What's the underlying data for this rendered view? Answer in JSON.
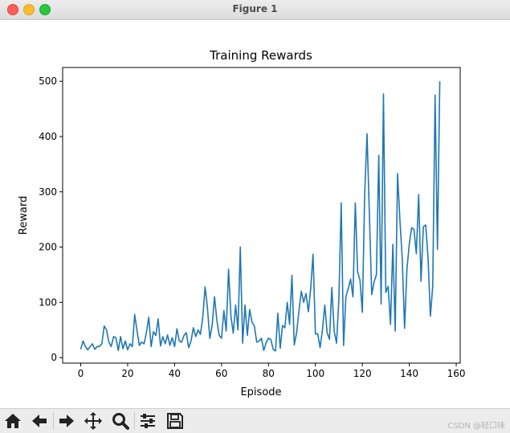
{
  "window": {
    "title": "Figure 1"
  },
  "toolbar": {
    "buttons": [
      "home-icon",
      "back-arrow-icon",
      "forward-arrow-icon",
      "pan-icon",
      "zoom-icon",
      "subplots-icon",
      "save-icon"
    ],
    "watermark": "CSDN @轻口味"
  },
  "colors": {
    "line": "#1f77b4",
    "axis": "#000000"
  },
  "chart_data": {
    "type": "line",
    "title": "Training Rewards",
    "xlabel": "Episode",
    "ylabel": "Reward",
    "xlim": [
      -7.7,
      161.7
    ],
    "ylim": [
      -10,
      525
    ],
    "xticks": [
      0,
      20,
      40,
      60,
      80,
      100,
      120,
      140,
      160
    ],
    "yticks": [
      0,
      100,
      200,
      300,
      400,
      500
    ],
    "grid": false,
    "series": [
      {
        "values": [
          15,
          30,
          20,
          14,
          20,
          25,
          15,
          20,
          20,
          25,
          57,
          50,
          28,
          20,
          38,
          36,
          13,
          38,
          16,
          30,
          14,
          25,
          20,
          78,
          48,
          22,
          28,
          25,
          46,
          73,
          20,
          47,
          40,
          70,
          21,
          38,
          25,
          41,
          22,
          36,
          20,
          52,
          30,
          28,
          40,
          45,
          18,
          30,
          54,
          38,
          50,
          42,
          72,
          128,
          90,
          35,
          58,
          110,
          68,
          40,
          35,
          85,
          48,
          160,
          75,
          44,
          95,
          50,
          200,
          26,
          95,
          40,
          87,
          64,
          57,
          28,
          30,
          35,
          13,
          27,
          35,
          33,
          15,
          12,
          80,
          17,
          58,
          54,
          100,
          60,
          149,
          23,
          45,
          85,
          120,
          100,
          116,
          83,
          125,
          187,
          43,
          43,
          18,
          50,
          95,
          45,
          33,
          127,
          48,
          26,
          105,
          280,
          22,
          110,
          125,
          142,
          110,
          280,
          155,
          140,
          82,
          296,
          405,
          260,
          114,
          137,
          150,
          366,
          97,
          477,
          118,
          129,
          60,
          205,
          48,
          333,
          250,
          180,
          53,
          160,
          205,
          235,
          232,
          188,
          295,
          138,
          237,
          240,
          180,
          75,
          130,
          475,
          196,
          500
        ]
      }
    ]
  }
}
